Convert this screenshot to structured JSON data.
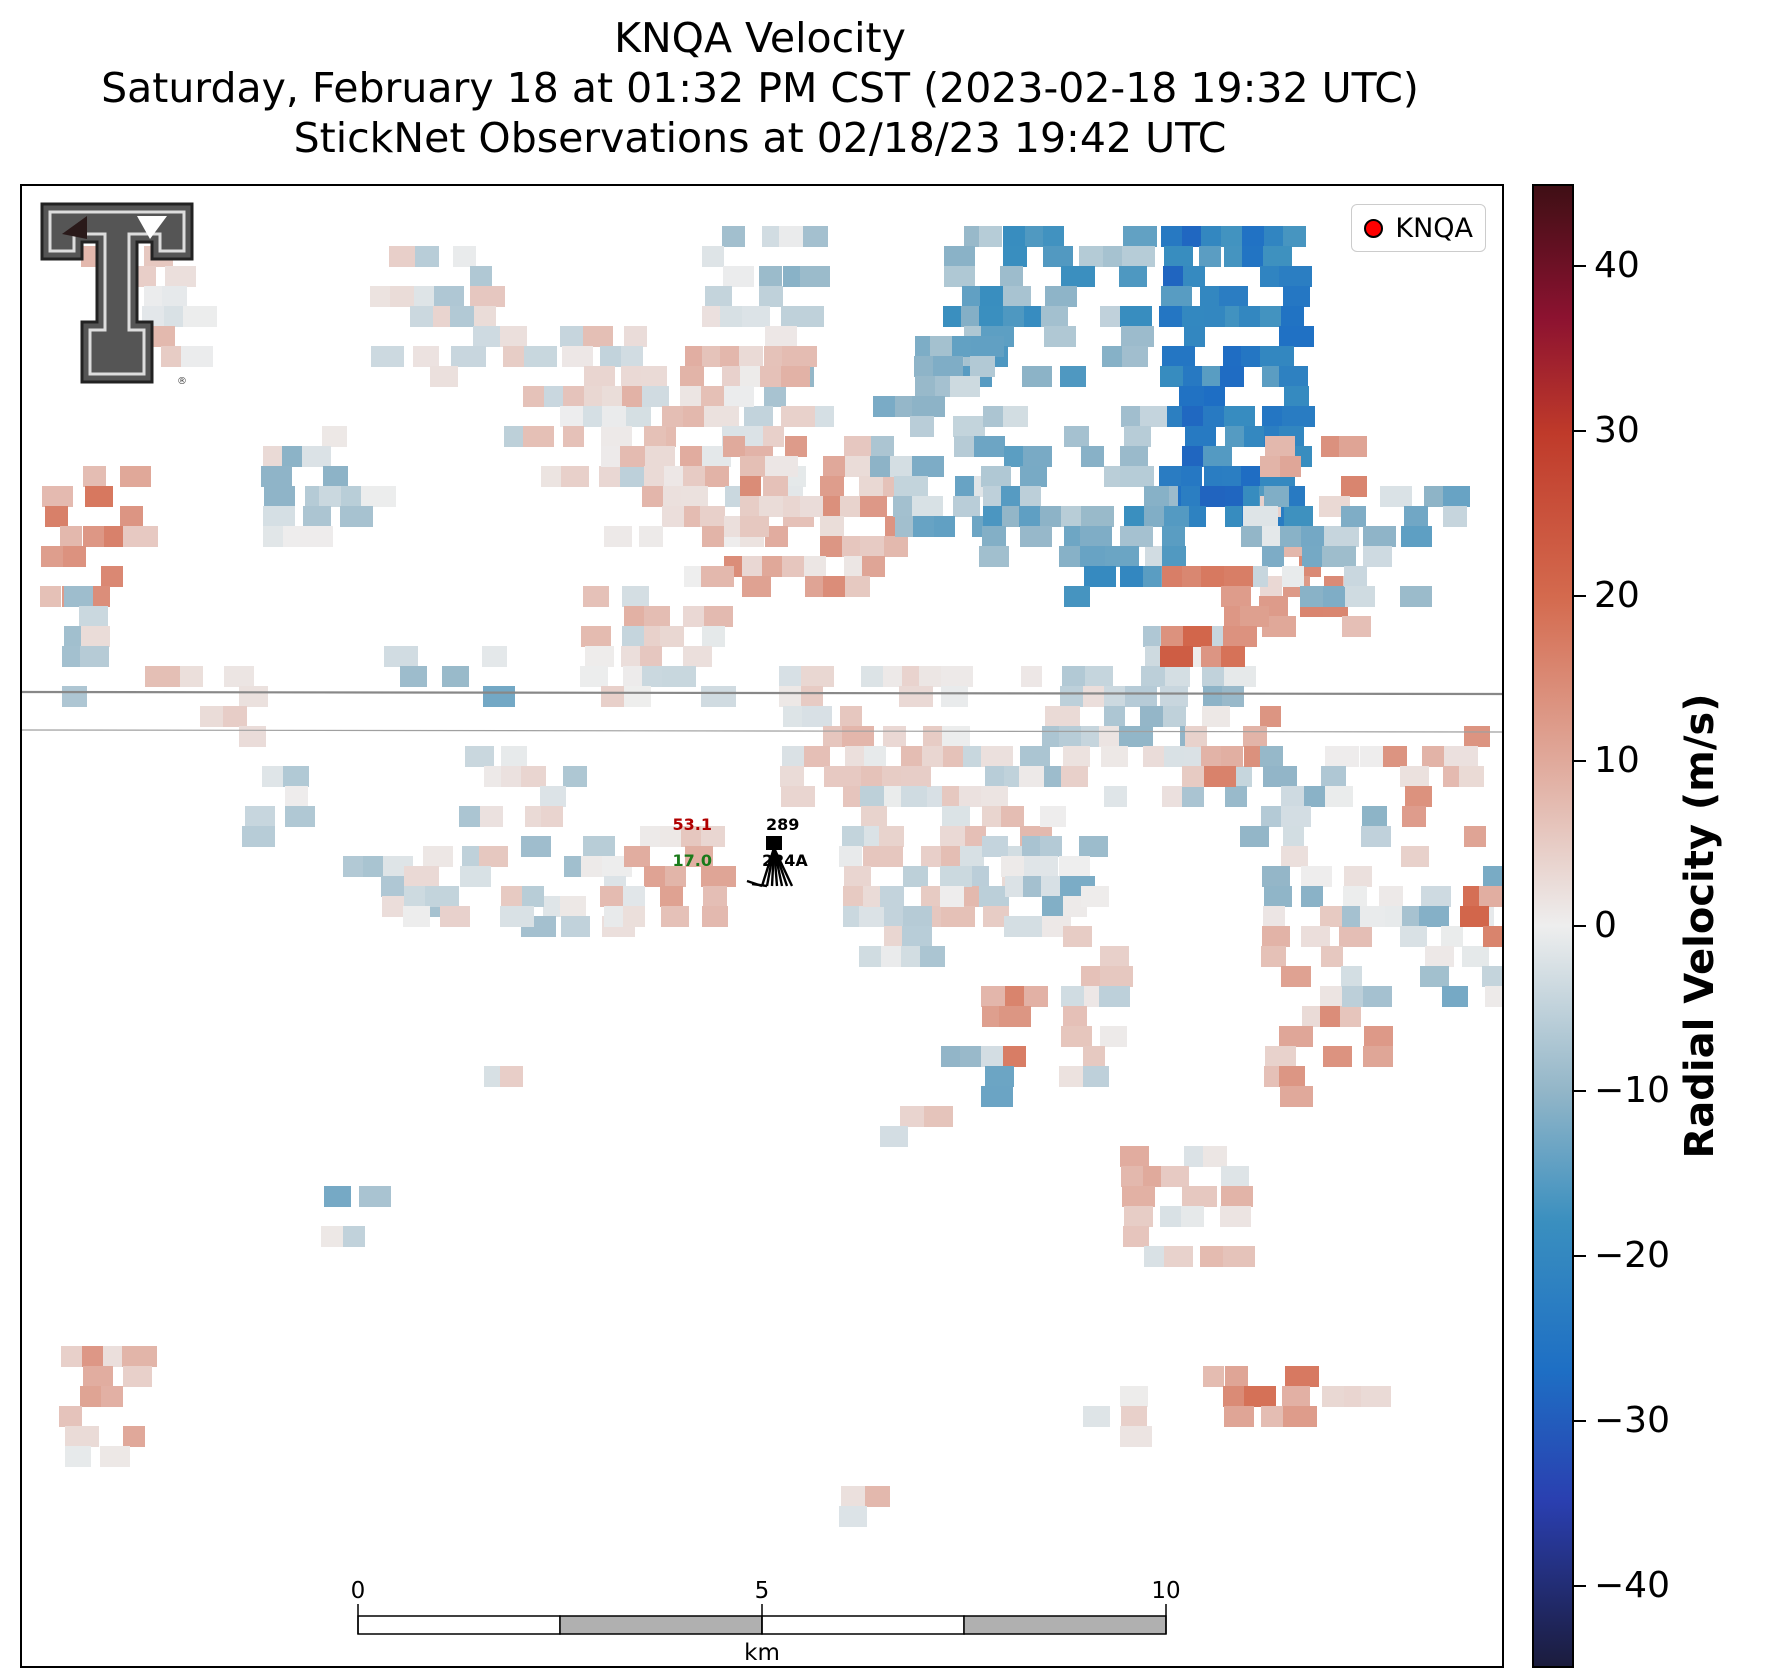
{
  "title": {
    "line1": "KNQA Velocity",
    "line2": "Saturday, February 18 at 01:32 PM CST (2023-02-18 19:32 UTC)",
    "line3": "StickNet Observations at 02/18/23 19:42 UTC"
  },
  "legend": {
    "label": "KNQA",
    "marker_color": "#ff0000"
  },
  "colorbar": {
    "label": "Radial Velocity (m/s)",
    "range": [
      -45,
      45
    ],
    "ticks": [
      40,
      30,
      20,
      10,
      0,
      -10,
      -20,
      -30,
      -40
    ],
    "tick_labels": [
      "40",
      "30",
      "20",
      "10",
      "0",
      "−10",
      "−20",
      "−30",
      "−40"
    ],
    "stops": [
      {
        "v": -45,
        "c": "#1b1c3d"
      },
      {
        "v": -35,
        "c": "#2a3fb0"
      },
      {
        "v": -27,
        "c": "#1e6fc4"
      },
      {
        "v": -18,
        "c": "#3a8fbf"
      },
      {
        "v": -10,
        "c": "#93b6c8"
      },
      {
        "v": 0,
        "c": "#eeeeee"
      },
      {
        "v": 10,
        "c": "#e0a99b"
      },
      {
        "v": 20,
        "c": "#d46a4e"
      },
      {
        "v": 30,
        "c": "#bf3a2a"
      },
      {
        "v": 37,
        "c": "#8c1230"
      },
      {
        "v": 45,
        "c": "#3f0f15"
      }
    ]
  },
  "station": {
    "temperature": "53.1",
    "pressure": "289",
    "dewpoint": "17.0",
    "id": "224A",
    "temperature_color": "#b00000",
    "dewpoint_color": "#1a7a1a"
  },
  "scale_bar": {
    "unit": "km",
    "labels": [
      "0",
      "5",
      "10"
    ]
  },
  "logo": {
    "name": "texas-tech-double-t-logo"
  }
}
